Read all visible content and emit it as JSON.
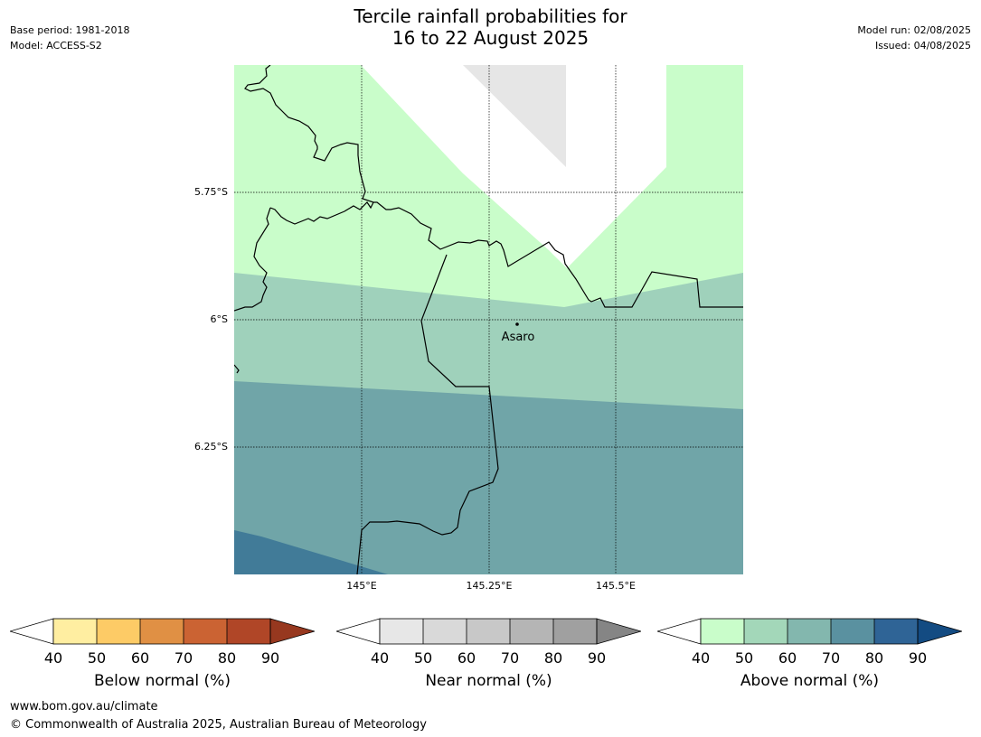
{
  "header": {
    "title_line1": "Tercile rainfall probabilities for",
    "title_line2": "16 to 22 August 2025",
    "base_period": "Base period: 1981-2018",
    "model": "Model: ACCESS-S2",
    "model_run": "Model run: 02/08/2025",
    "issued": "Issued: 04/08/2025"
  },
  "map": {
    "lat_labels": [
      "5.75°S",
      "6°S",
      "6.25°S"
    ],
    "lon_labels": [
      "145°E",
      "145.25°E",
      "145.5°E"
    ],
    "place_name": "Asaro",
    "colors": {
      "above_40_50": "#c9fdca",
      "above_50_60": "#9fd1bb",
      "above_60_70": "#70a5a8",
      "above_70_80": "#417b98",
      "near_40_50": "#e6e6e6",
      "no_dominant": "#ffffff"
    }
  },
  "legends": [
    {
      "title": "Below normal (%)",
      "ticks": [
        "40",
        "50",
        "60",
        "70",
        "80",
        "90"
      ],
      "colors": [
        "#ffeea1",
        "#fdcb66",
        "#e09044",
        "#cb6333",
        "#b04627",
        "#97381f"
      ]
    },
    {
      "title": "Near normal (%)",
      "ticks": [
        "40",
        "50",
        "60",
        "70",
        "80",
        "90"
      ],
      "colors": [
        "#e7e7e7",
        "#d9d9d9",
        "#c8c8c8",
        "#b5b5b5",
        "#a0a0a0",
        "#858585"
      ]
    },
    {
      "title": "Above normal (%)",
      "ticks": [
        "40",
        "50",
        "60",
        "70",
        "80",
        "90"
      ],
      "colors": [
        "#c9fdca",
        "#a3d7b9",
        "#83b7ae",
        "#5a91a0",
        "#2f6496",
        "#134b82"
      ]
    }
  ],
  "footer": {
    "url": "www.bom.gov.au/climate",
    "copyright": "© Commonwealth of Australia 2025, Australian Bureau of Meteorology"
  }
}
